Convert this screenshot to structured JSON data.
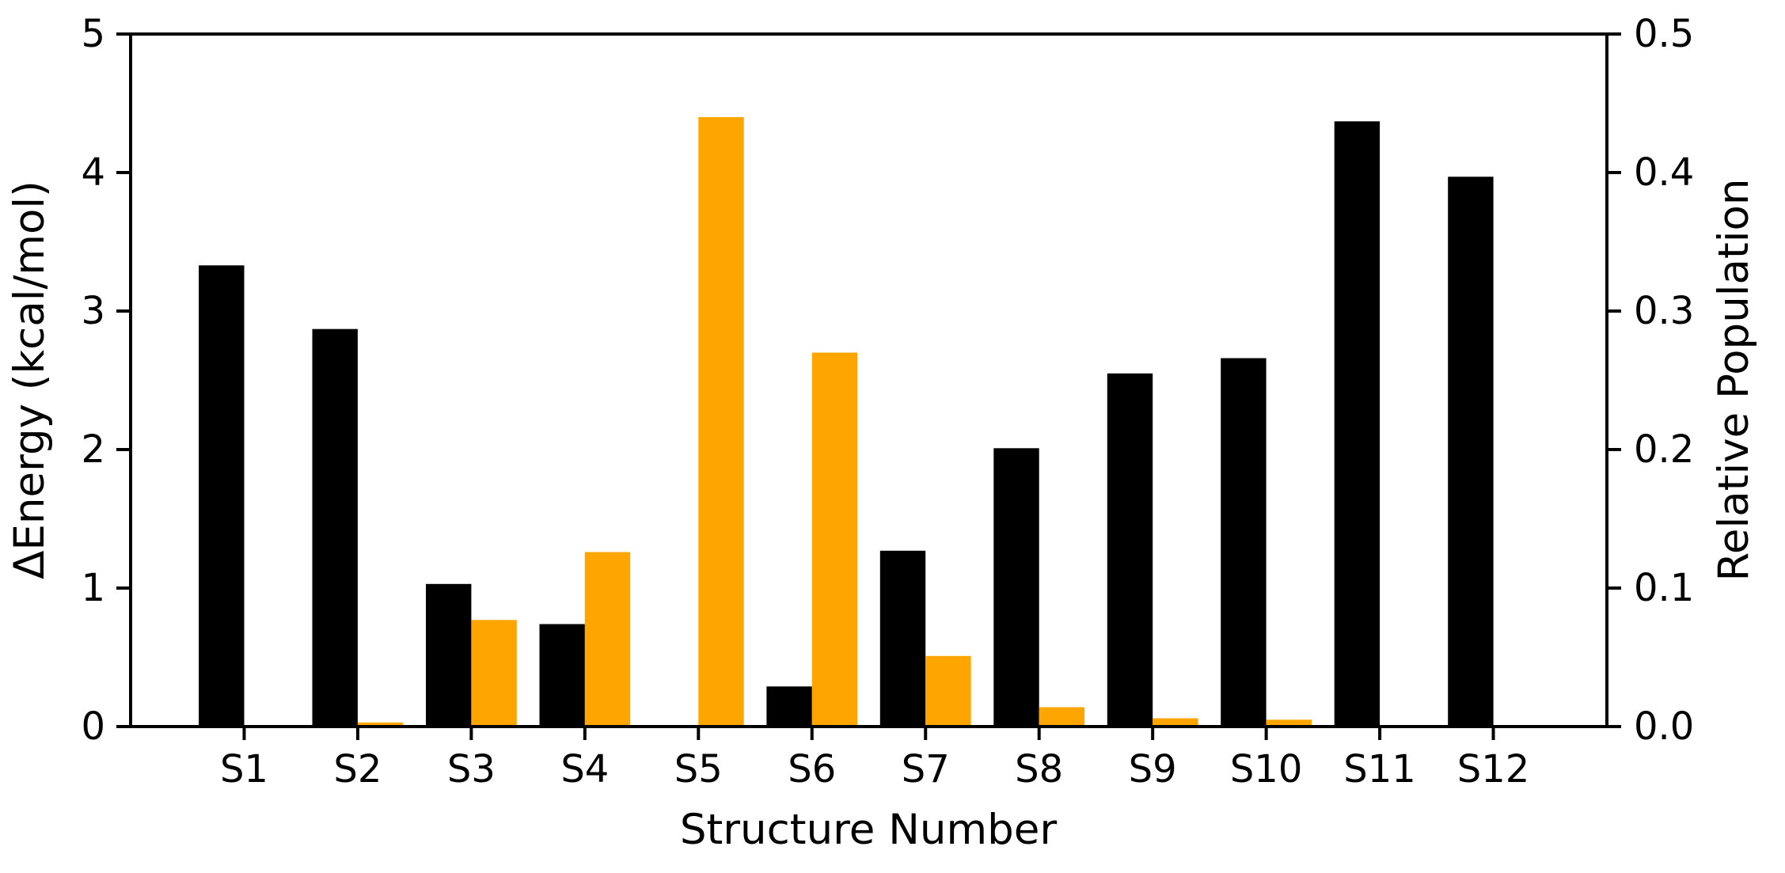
{
  "figure": {
    "background": "#ffffff"
  },
  "chart_data": {
    "type": "bar",
    "title": "",
    "xlabel": "Structure Number",
    "ylabel_left": "ΔEnergy (kcal/mol)",
    "ylabel_right": "Relative Population",
    "categories": [
      "S1",
      "S2",
      "S3",
      "S4",
      "S5",
      "S6",
      "S7",
      "S8",
      "S9",
      "S10",
      "S11",
      "S12"
    ],
    "series": [
      {
        "name": "Energy (kcal/mol)",
        "axis": "left",
        "color": "#000000",
        "values": [
          3.33,
          2.87,
          1.03,
          0.74,
          0.0,
          0.29,
          1.27,
          2.01,
          2.55,
          2.66,
          4.37,
          3.97
        ]
      },
      {
        "name": "Relative Population",
        "axis": "right",
        "color": "#FFA500",
        "values": [
          0.001,
          0.003,
          0.077,
          0.126,
          0.44,
          0.27,
          0.051,
          0.014,
          0.006,
          0.005,
          0.0,
          0.0
        ]
      }
    ],
    "left_axis": {
      "min": 0,
      "max": 5,
      "ticks": [
        "0",
        "1",
        "2",
        "3",
        "4",
        "5"
      ]
    },
    "right_axis": {
      "min": 0.0,
      "max": 0.5,
      "ticks": [
        "0.0",
        "0.1",
        "0.2",
        "0.3",
        "0.4",
        "0.5"
      ]
    },
    "grid": false,
    "legend": "none",
    "bar_width_fraction": 0.4,
    "colors": {
      "energy": "#000000",
      "population": "#FFA500",
      "axis": "#000000"
    }
  }
}
